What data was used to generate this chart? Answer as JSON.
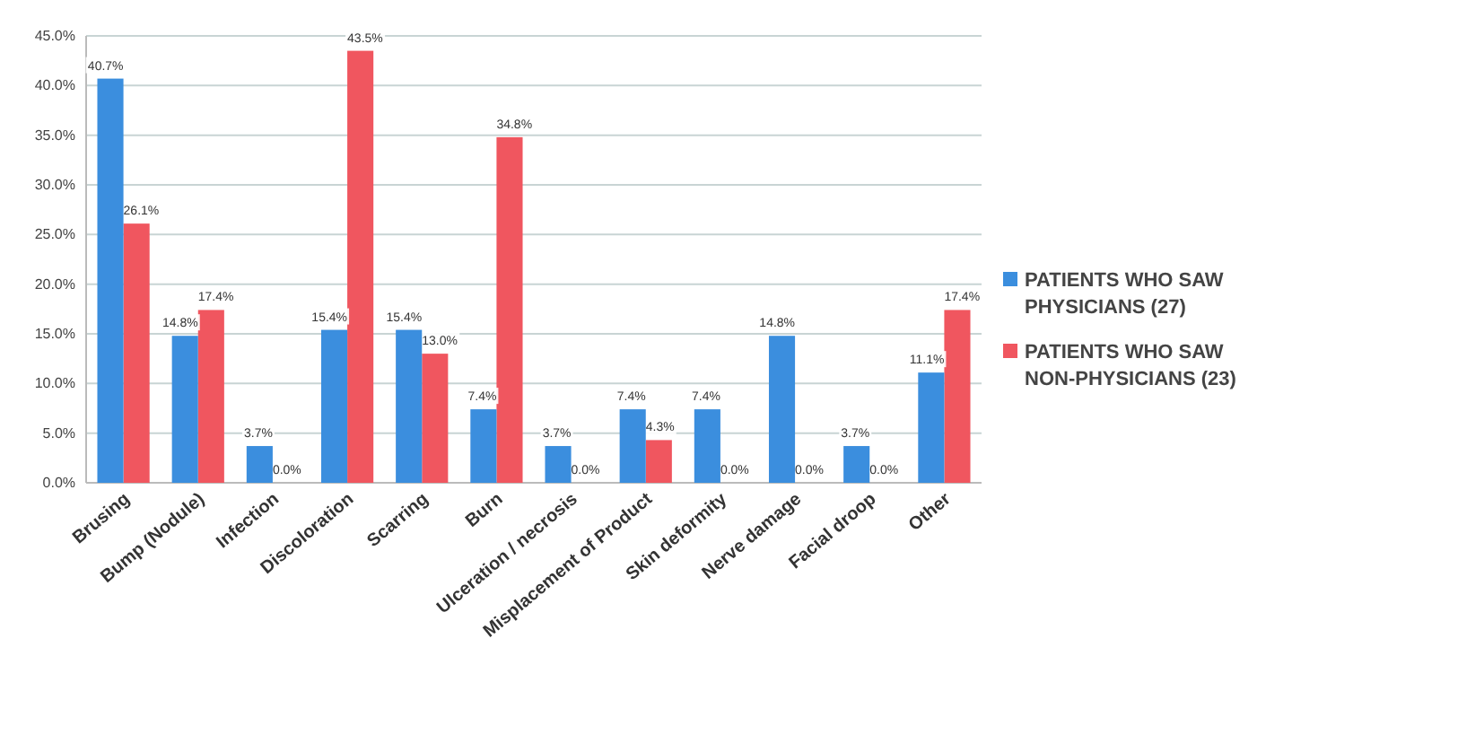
{
  "chart_data": {
    "type": "bar",
    "categories": [
      "Brusing",
      "Bump (Nodule)",
      "Infection",
      "Discoloration",
      "Scarring",
      "Burn",
      "Ulceration / necrosis",
      "Misplacement of Product",
      "Skin deformity",
      "Nerve damage",
      "Facial droop",
      "Other"
    ],
    "series": [
      {
        "name": "PATIENTS WHO SAW PHYSICIANS (27)",
        "color": "#3b8ede",
        "values": [
          40.7,
          14.8,
          3.7,
          15.4,
          15.4,
          7.4,
          3.7,
          7.4,
          7.4,
          14.8,
          3.7,
          11.1
        ],
        "value_labels": [
          "40.7%",
          "14.8%",
          "3.7%",
          "15.4%",
          "15.4%",
          "7.4%",
          "3.7%",
          "7.4%",
          "7.4%",
          "14.8%",
          "3.7%",
          "11.1%"
        ]
      },
      {
        "name": "PATIENTS WHO SAW NON-PHYSICIANS (23)",
        "color": "#f0565f",
        "values": [
          26.1,
          17.4,
          0,
          43.5,
          13.0,
          34.8,
          0,
          4.3,
          0,
          0,
          0,
          17.4
        ],
        "value_labels": [
          "26.1%",
          "17.4%",
          "0.0%",
          "43.5%",
          "13.0%",
          "34.8%",
          "0.0%",
          "4.3%",
          "0.0%",
          "0.0%",
          "0.0%",
          "17.4%"
        ]
      }
    ],
    "ylim": [
      0,
      45
    ],
    "yticks": [
      {
        "value": 0,
        "label": "0.0%"
      },
      {
        "value": 5,
        "label": "5.0%"
      },
      {
        "value": 10,
        "label": "10.0%"
      },
      {
        "value": 15,
        "label": "15.0%"
      },
      {
        "value": 20,
        "label": "20.0%"
      },
      {
        "value": 25,
        "label": "25.0%"
      },
      {
        "value": 30,
        "label": "30.0%"
      },
      {
        "value": 35,
        "label": "35.0%"
      },
      {
        "value": 40,
        "label": "40.0%"
      },
      {
        "value": 45,
        "label": "45.0%"
      }
    ],
    "grid": "y",
    "legend": "right"
  }
}
